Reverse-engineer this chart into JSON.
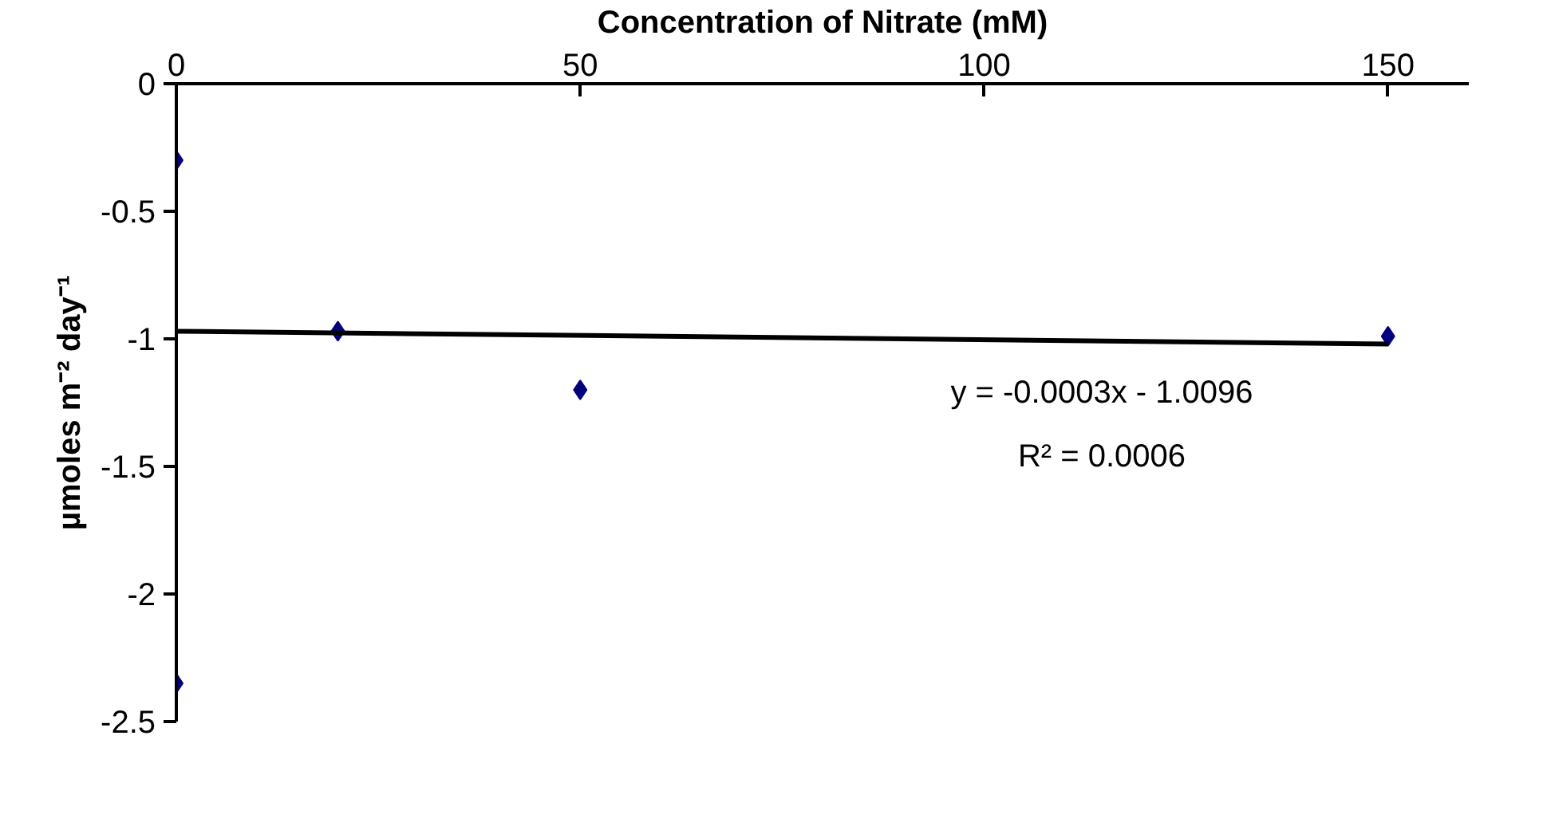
{
  "chart_data": {
    "type": "scatter",
    "xlabel": "Concentration of Nitrate (mM)",
    "ylabel": "µmoles m⁻² day⁻¹",
    "xlim": [
      0,
      160
    ],
    "xticks": [
      0,
      50,
      100,
      150
    ],
    "ylim": [
      -2.5,
      0
    ],
    "yticks": [
      0,
      -0.5,
      -1,
      -1.5,
      -2,
      -2.5
    ],
    "grid": false,
    "series": [
      {
        "marker": "diamond",
        "color": "#000080",
        "x": [
          0,
          20,
          50,
          150,
          0
        ],
        "values": [
          -0.3,
          -0.97,
          -1.2,
          -0.99,
          -2.35
        ]
      },
      {
        "type": "line",
        "color": "#000000",
        "x": [
          0,
          150
        ],
        "values": [
          -0.97,
          -1.02
        ]
      }
    ],
    "annotations": [
      "y = -0.0003x - 1.0096",
      "R² = 0.0006"
    ]
  }
}
